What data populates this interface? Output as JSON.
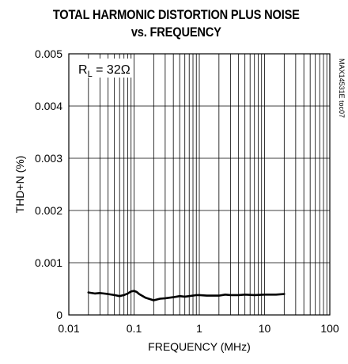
{
  "chart_data": {
    "type": "line",
    "title_line1": "TOTAL HARMONIC DISTORTION PLUS NOISE",
    "title_line2": "vs. FREQUENCY",
    "xlabel": "FREQUENCY (MHz)",
    "ylabel": "THD+N (%)",
    "x_scale": "log",
    "xlim": [
      0.01,
      100
    ],
    "ylim": [
      0,
      0.005
    ],
    "x_ticks": [
      "0.01",
      "0.1",
      "1",
      "10",
      "100"
    ],
    "y_ticks": [
      "0",
      "0.001",
      "0.002",
      "0.003",
      "0.004",
      "0.005"
    ],
    "grid": true,
    "annotation": "R_L = 32Ω",
    "annotation_main": "R",
    "annotation_sub": "L",
    "annotation_rest": " = 32Ω",
    "watermark": "MAX14531E toc07",
    "series": [
      {
        "x": [
          0.02,
          0.025,
          0.03,
          0.04,
          0.05,
          0.06,
          0.07,
          0.08,
          0.09,
          0.1,
          0.11,
          0.12,
          0.15,
          0.2,
          0.25,
          0.3,
          0.4,
          0.5,
          0.6,
          0.7,
          0.8,
          0.9,
          1.0,
          1.3,
          1.5,
          2.0,
          2.5,
          3.0,
          4.0,
          5.0,
          7.0,
          10.0,
          15.0,
          20.0
        ],
        "y": [
          0.00043,
          0.00041,
          0.00042,
          0.0004,
          0.00038,
          0.00036,
          0.00038,
          0.00041,
          0.00045,
          0.00046,
          0.00044,
          0.0004,
          0.00033,
          0.00028,
          0.00031,
          0.00032,
          0.00034,
          0.00036,
          0.00035,
          0.00036,
          0.00037,
          0.00038,
          0.00038,
          0.00037,
          0.00037,
          0.00037,
          0.00039,
          0.00038,
          0.00038,
          0.00039,
          0.00038,
          0.00039,
          0.00039,
          0.0004
        ]
      }
    ]
  }
}
